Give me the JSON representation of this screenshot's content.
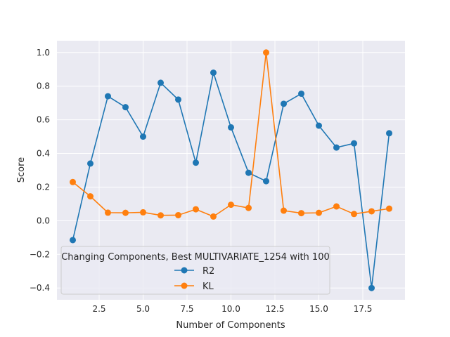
{
  "chart_data": {
    "type": "line",
    "title": "",
    "xlabel": "Number of Components",
    "ylabel": "Score",
    "xlim": [
      0.1,
      19.9
    ],
    "ylim": [
      -0.47,
      1.07
    ],
    "x_ticks": [
      2.5,
      5.0,
      7.5,
      10.0,
      12.5,
      15.0,
      17.5
    ],
    "x_tick_labels": [
      "2.5",
      "5.0",
      "7.5",
      "10.0",
      "12.5",
      "15.0",
      "17.5"
    ],
    "y_ticks": [
      -0.4,
      -0.2,
      0.0,
      0.2,
      0.4,
      0.6,
      0.8,
      1.0
    ],
    "y_tick_labels": [
      "−0.4",
      "−0.2",
      "0.0",
      "0.2",
      "0.4",
      "0.6",
      "0.8",
      "1.0"
    ],
    "grid": true,
    "legend": {
      "title": "Changing Components, Best MULTIVARIATE_1254 with 100",
      "placement": "lower-left"
    },
    "x": [
      1,
      2,
      3,
      4,
      5,
      6,
      7,
      8,
      9,
      10,
      11,
      12,
      13,
      14,
      15,
      16,
      17,
      18,
      19
    ],
    "series": [
      {
        "name": "R2",
        "color": "#1f77b4",
        "values": [
          -0.115,
          0.34,
          0.74,
          0.675,
          0.5,
          0.82,
          0.72,
          0.345,
          0.88,
          0.555,
          0.285,
          0.235,
          0.695,
          0.755,
          0.565,
          0.435,
          0.46,
          -0.4,
          0.52
        ]
      },
      {
        "name": "KL",
        "color": "#ff7f0e",
        "values": [
          0.23,
          0.145,
          0.048,
          0.047,
          0.05,
          0.032,
          0.033,
          0.068,
          0.025,
          0.095,
          0.076,
          1.0,
          0.06,
          0.045,
          0.047,
          0.085,
          0.04,
          0.056,
          0.072
        ]
      }
    ]
  }
}
